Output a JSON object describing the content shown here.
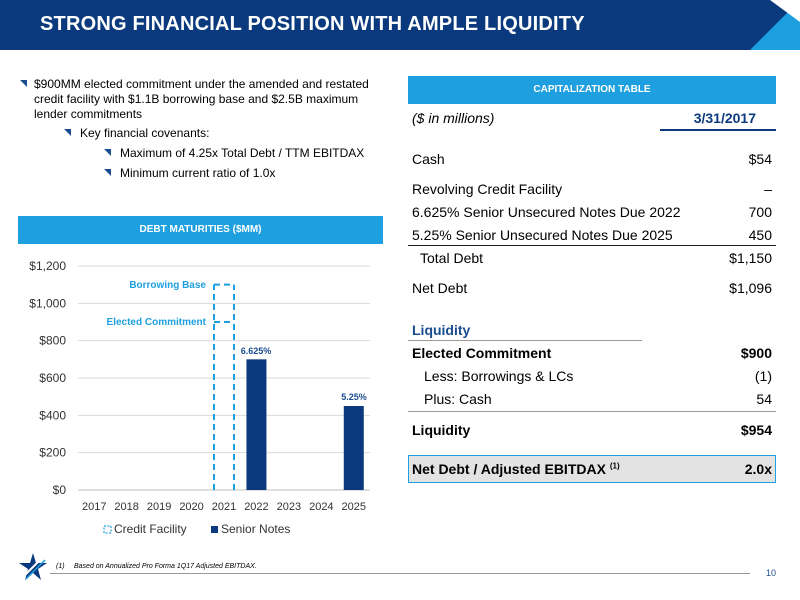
{
  "header": {
    "title": "STRONG FINANCIAL POSITION WITH AMPLE LIQUIDITY"
  },
  "bullets": {
    "main_line1": "$900MM elected commitment under the amended and restated",
    "main_line2": "credit facility with $1.1B borrowing base and $2.5B maximum",
    "main_line3": "lender commitments",
    "sub": "Key financial covenants:",
    "subsub": [
      "Maximum of 4.25x Total Debt / TTM EBITDAX",
      "Minimum current ratio of 1.0x"
    ]
  },
  "debt_chart": {
    "banner": "DEBT MATURITIES ($MM)",
    "annotations": {
      "borrowing_base": "Borrowing Base",
      "elected_commitment": "Elected Commitment",
      "bar_2022": "6.625%",
      "bar_2025": "5.25%"
    },
    "legend": {
      "credit_facility": "Credit Facility",
      "senior_notes": "Senior Notes"
    }
  },
  "chart_data": {
    "type": "bar",
    "title": "DEBT MATURITIES ($MM)",
    "categories": [
      "2017",
      "2018",
      "2019",
      "2020",
      "2021",
      "2022",
      "2023",
      "2024",
      "2025"
    ],
    "y_tick_labels": [
      "$0",
      "$200",
      "$400",
      "$600",
      "$800",
      "$1,000",
      "$1,200"
    ],
    "ylim": [
      0,
      1200
    ],
    "grid": true,
    "legend_position": "bottom",
    "series": [
      {
        "name": "Credit Facility",
        "style": "dashed-outline",
        "values": [
          0,
          0,
          0,
          0,
          1100,
          0,
          0,
          0,
          0
        ],
        "markers": {
          "Elected Commitment": 900,
          "Borrowing Base": 1100
        }
      },
      {
        "name": "Senior Notes",
        "values": [
          0,
          0,
          0,
          0,
          0,
          700,
          0,
          0,
          450
        ],
        "data_labels": {
          "2022": "6.625%",
          "2025": "5.25%"
        }
      }
    ],
    "colors": {
      "senior_notes": "#0a3a7d",
      "credit_facility": "#1e9fdf",
      "grid": "#d9d9d9"
    }
  },
  "cap_table": {
    "banner": "CAPITALIZATION TABLE",
    "header_label": "($ in millions)",
    "header_date": "3/31/2017",
    "rows": [
      {
        "label": "Cash",
        "value": "$54"
      },
      {
        "label": "Revolving Credit Facility",
        "value": "–"
      },
      {
        "label": "6.625% Senior Unsecured Notes Due 2022",
        "value": "700"
      },
      {
        "label": "5.25% Senior Unsecured Notes Due 2025",
        "value": "450"
      },
      {
        "label": "Total Debt",
        "value": "$1,150"
      },
      {
        "label": "Net Debt",
        "value": "$1,096"
      }
    ],
    "liquidity_header": "Liquidity",
    "liquidity_rows": [
      {
        "label": "Elected Commitment",
        "value": "$900"
      },
      {
        "label": "Less: Borrowings & LCs",
        "value": "(1)"
      },
      {
        "label": "Plus: Cash",
        "value": "54"
      },
      {
        "label": "Liquidity",
        "value": "$954"
      }
    ],
    "ratio": {
      "label": "Net Debt / Adjusted EBITDAX",
      "sup": "(1)",
      "value": "2.0x"
    }
  },
  "footer": {
    "footnote_num": "(1)",
    "footnote": "Based on Annualized Pro Forma 1Q17 Adjusted EBITDAX.",
    "page": "10"
  },
  "colors": {
    "navy": "#0a3a7d",
    "accent_blue": "#1e9fdf"
  }
}
